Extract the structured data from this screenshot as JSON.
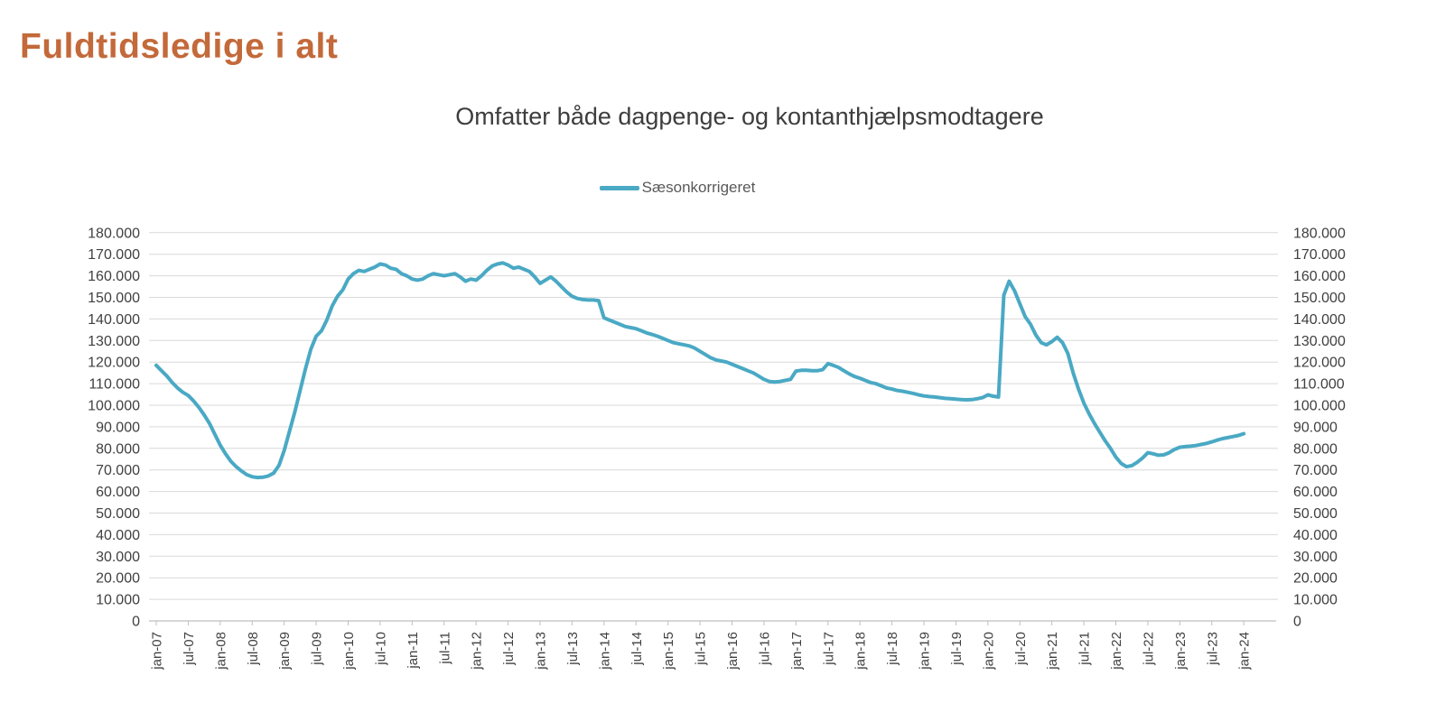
{
  "page": {
    "title": "Fuldtidsledige i alt"
  },
  "colors": {
    "title": "#C3693A",
    "subtitle": "#3D3D3D",
    "axis_text": "#404040",
    "legend_text": "#595959",
    "gridline": "#D9D9D9",
    "axis_line": "#BFBFBF",
    "series_line": "#4AA9C4",
    "background": "#FFFFFF"
  },
  "chart_data": {
    "type": "line",
    "title": "Omfatter både dagpenge- og kontanthjælpsmodtagere",
    "legend": {
      "position": "top-center",
      "entries": [
        {
          "label": "Sæsonkorrigeret",
          "color": "#4AA9C4"
        }
      ]
    },
    "grid": {
      "horizontal": true,
      "vertical": false
    },
    "y": {
      "min": 0,
      "max": 180000,
      "step": 10000,
      "axes": [
        "left",
        "right"
      ],
      "tick_labels": [
        "0",
        "10.000",
        "20.000",
        "30.000",
        "40.000",
        "50.000",
        "60.000",
        "70.000",
        "80.000",
        "90.000",
        "100.000",
        "110.000",
        "120.000",
        "130.000",
        "140.000",
        "150.000",
        "160.000",
        "170.000",
        "180.000"
      ]
    },
    "x": {
      "start_month": "2007-01",
      "end_month": "2024-01",
      "tick_every_months": 6,
      "tick_labels": [
        "jan-07",
        "jul-07",
        "jan-08",
        "jul-08",
        "jan-09",
        "jul-09",
        "jan-10",
        "jul-10",
        "jan-11",
        "jul-11",
        "jan-12",
        "jul-12",
        "jan-13",
        "jul-13",
        "jan-14",
        "jul-14",
        "jan-15",
        "jul-15",
        "jan-16",
        "jul-16",
        "jan-17",
        "jul-17",
        "jan-18",
        "jul-18",
        "jan-19",
        "jul-19",
        "jan-20",
        "jul-20",
        "jan-21",
        "jul-21",
        "jan-22",
        "jul-22",
        "jan-23",
        "jul-23",
        "jan-24"
      ]
    },
    "series": [
      {
        "name": "Sæsonkorrigeret",
        "color": "#4AA9C4",
        "monthly_values": [
          118500,
          116000,
          113500,
          110500,
          108000,
          106000,
          104500,
          102000,
          99000,
          95500,
          91500,
          86500,
          81500,
          77500,
          74000,
          71500,
          69500,
          67800,
          66800,
          66500,
          66600,
          67200,
          68500,
          72000,
          79000,
          88000,
          97000,
          107000,
          117000,
          126000,
          132000,
          134500,
          139500,
          146000,
          150500,
          153500,
          158500,
          161000,
          162500,
          162000,
          163000,
          164000,
          165500,
          165000,
          163500,
          163000,
          161000,
          160000,
          158500,
          158000,
          158500,
          160000,
          161000,
          160500,
          160000,
          160500,
          161000,
          159500,
          157500,
          158500,
          158000,
          160000,
          162500,
          164500,
          165500,
          166000,
          165000,
          163500,
          164000,
          163000,
          162000,
          159500,
          156500,
          158000,
          159500,
          157500,
          155000,
          152500,
          150500,
          149500,
          149000,
          148800,
          148800,
          148500,
          140500,
          139500,
          138500,
          137500,
          136500,
          136000,
          135500,
          134500,
          133500,
          132800,
          132000,
          131000,
          130000,
          129000,
          128500,
          128000,
          127500,
          126500,
          125000,
          123500,
          122000,
          121000,
          120500,
          120000,
          119000,
          118000,
          117000,
          116000,
          115000,
          113500,
          112000,
          111000,
          110800,
          111000,
          111500,
          112000,
          115800,
          116200,
          116200,
          116000,
          116000,
          116500,
          119300,
          118500,
          117500,
          116000,
          114500,
          113300,
          112500,
          111500,
          110500,
          110000,
          109000,
          108000,
          107500,
          106800,
          106500,
          106000,
          105500,
          104800,
          104300,
          104000,
          103800,
          103500,
          103200,
          103000,
          102800,
          102600,
          102500,
          102600,
          103000,
          103500,
          104800,
          104200,
          103800,
          151000,
          157500,
          153000,
          147000,
          141000,
          137500,
          132500,
          129000,
          128000,
          129500,
          131500,
          129000,
          124000,
          115000,
          107500,
          101000,
          96000,
          91500,
          87500,
          83500,
          80000,
          76000,
          73000,
          71500,
          72000,
          73500,
          75500,
          78000,
          77500,
          76800,
          77000,
          78000,
          79500,
          80500,
          80800,
          81000,
          81300,
          81800,
          82300,
          83000,
          83800,
          84500,
          85000,
          85500,
          86000,
          86800
        ]
      }
    ]
  }
}
